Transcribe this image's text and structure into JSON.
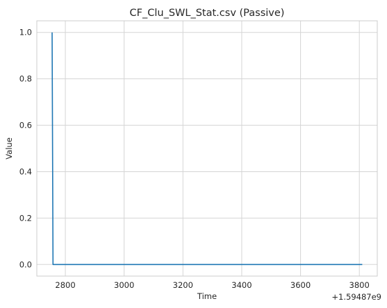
{
  "chart_data": {
    "type": "line",
    "title": "CF_Clu_SWL_Stat.csv (Passive)",
    "xlabel": "Time",
    "ylabel": "Value",
    "x_offset_label": "+1.59487e9",
    "x_ticks": [
      2800,
      3000,
      3200,
      3400,
      3600,
      3800
    ],
    "x_tick_labels": [
      "2800",
      "3000",
      "3200",
      "3400",
      "3600",
      "3800"
    ],
    "y_ticks": [
      0.0,
      0.2,
      0.4,
      0.6,
      0.8,
      1.0
    ],
    "y_tick_labels": [
      "0.0",
      "0.2",
      "0.4",
      "0.6",
      "0.8",
      "1.0"
    ],
    "xlim": [
      2703,
      3861
    ],
    "ylim": [
      -0.05,
      1.05
    ],
    "grid": true,
    "series": [
      {
        "color": "#1f77b4",
        "x": [
          2755,
          2758,
          3810
        ],
        "y": [
          1.0,
          0.0,
          0.0
        ]
      }
    ]
  }
}
